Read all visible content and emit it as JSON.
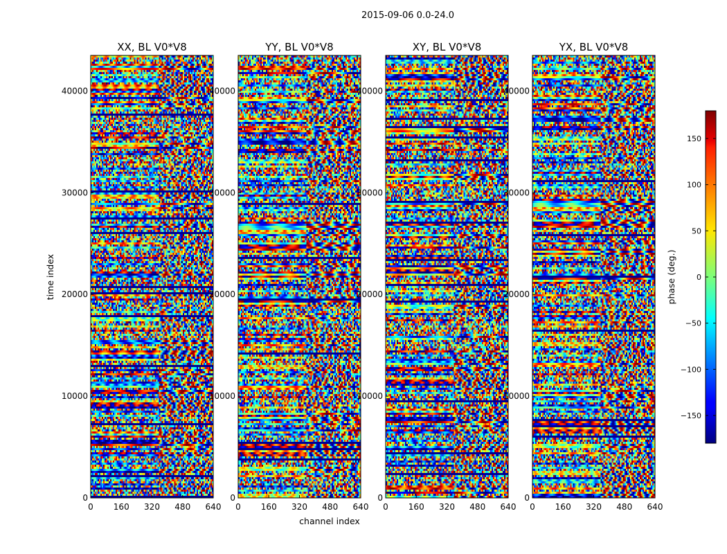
{
  "chart_data": {
    "type": "heatmap",
    "title": "2015-09-06 0.0-24.0",
    "xlabel": "channel index",
    "ylabel": "time index",
    "xlim": [
      0,
      640
    ],
    "ylim": [
      0,
      43500
    ],
    "xticks": [
      "0",
      "160",
      "320",
      "480",
      "640"
    ],
    "yticks": [
      "0",
      "10000",
      "20000",
      "30000",
      "40000"
    ],
    "colormap": "jet",
    "colorbar": {
      "label": "phase (deg.)",
      "range": [
        -180,
        180
      ],
      "ticks": [
        "150",
        "100",
        "50",
        "0",
        "−50",
        "−100",
        "−150"
      ],
      "tick_values": [
        150,
        100,
        50,
        0,
        -50,
        -100,
        -150
      ]
    },
    "panels": [
      {
        "title": "XX, BL V0*V8"
      },
      {
        "title": "YY, BL V0*V8"
      },
      {
        "title": "XY, BL V0*V8"
      },
      {
        "title": "YX, BL V0*V8"
      }
    ]
  }
}
